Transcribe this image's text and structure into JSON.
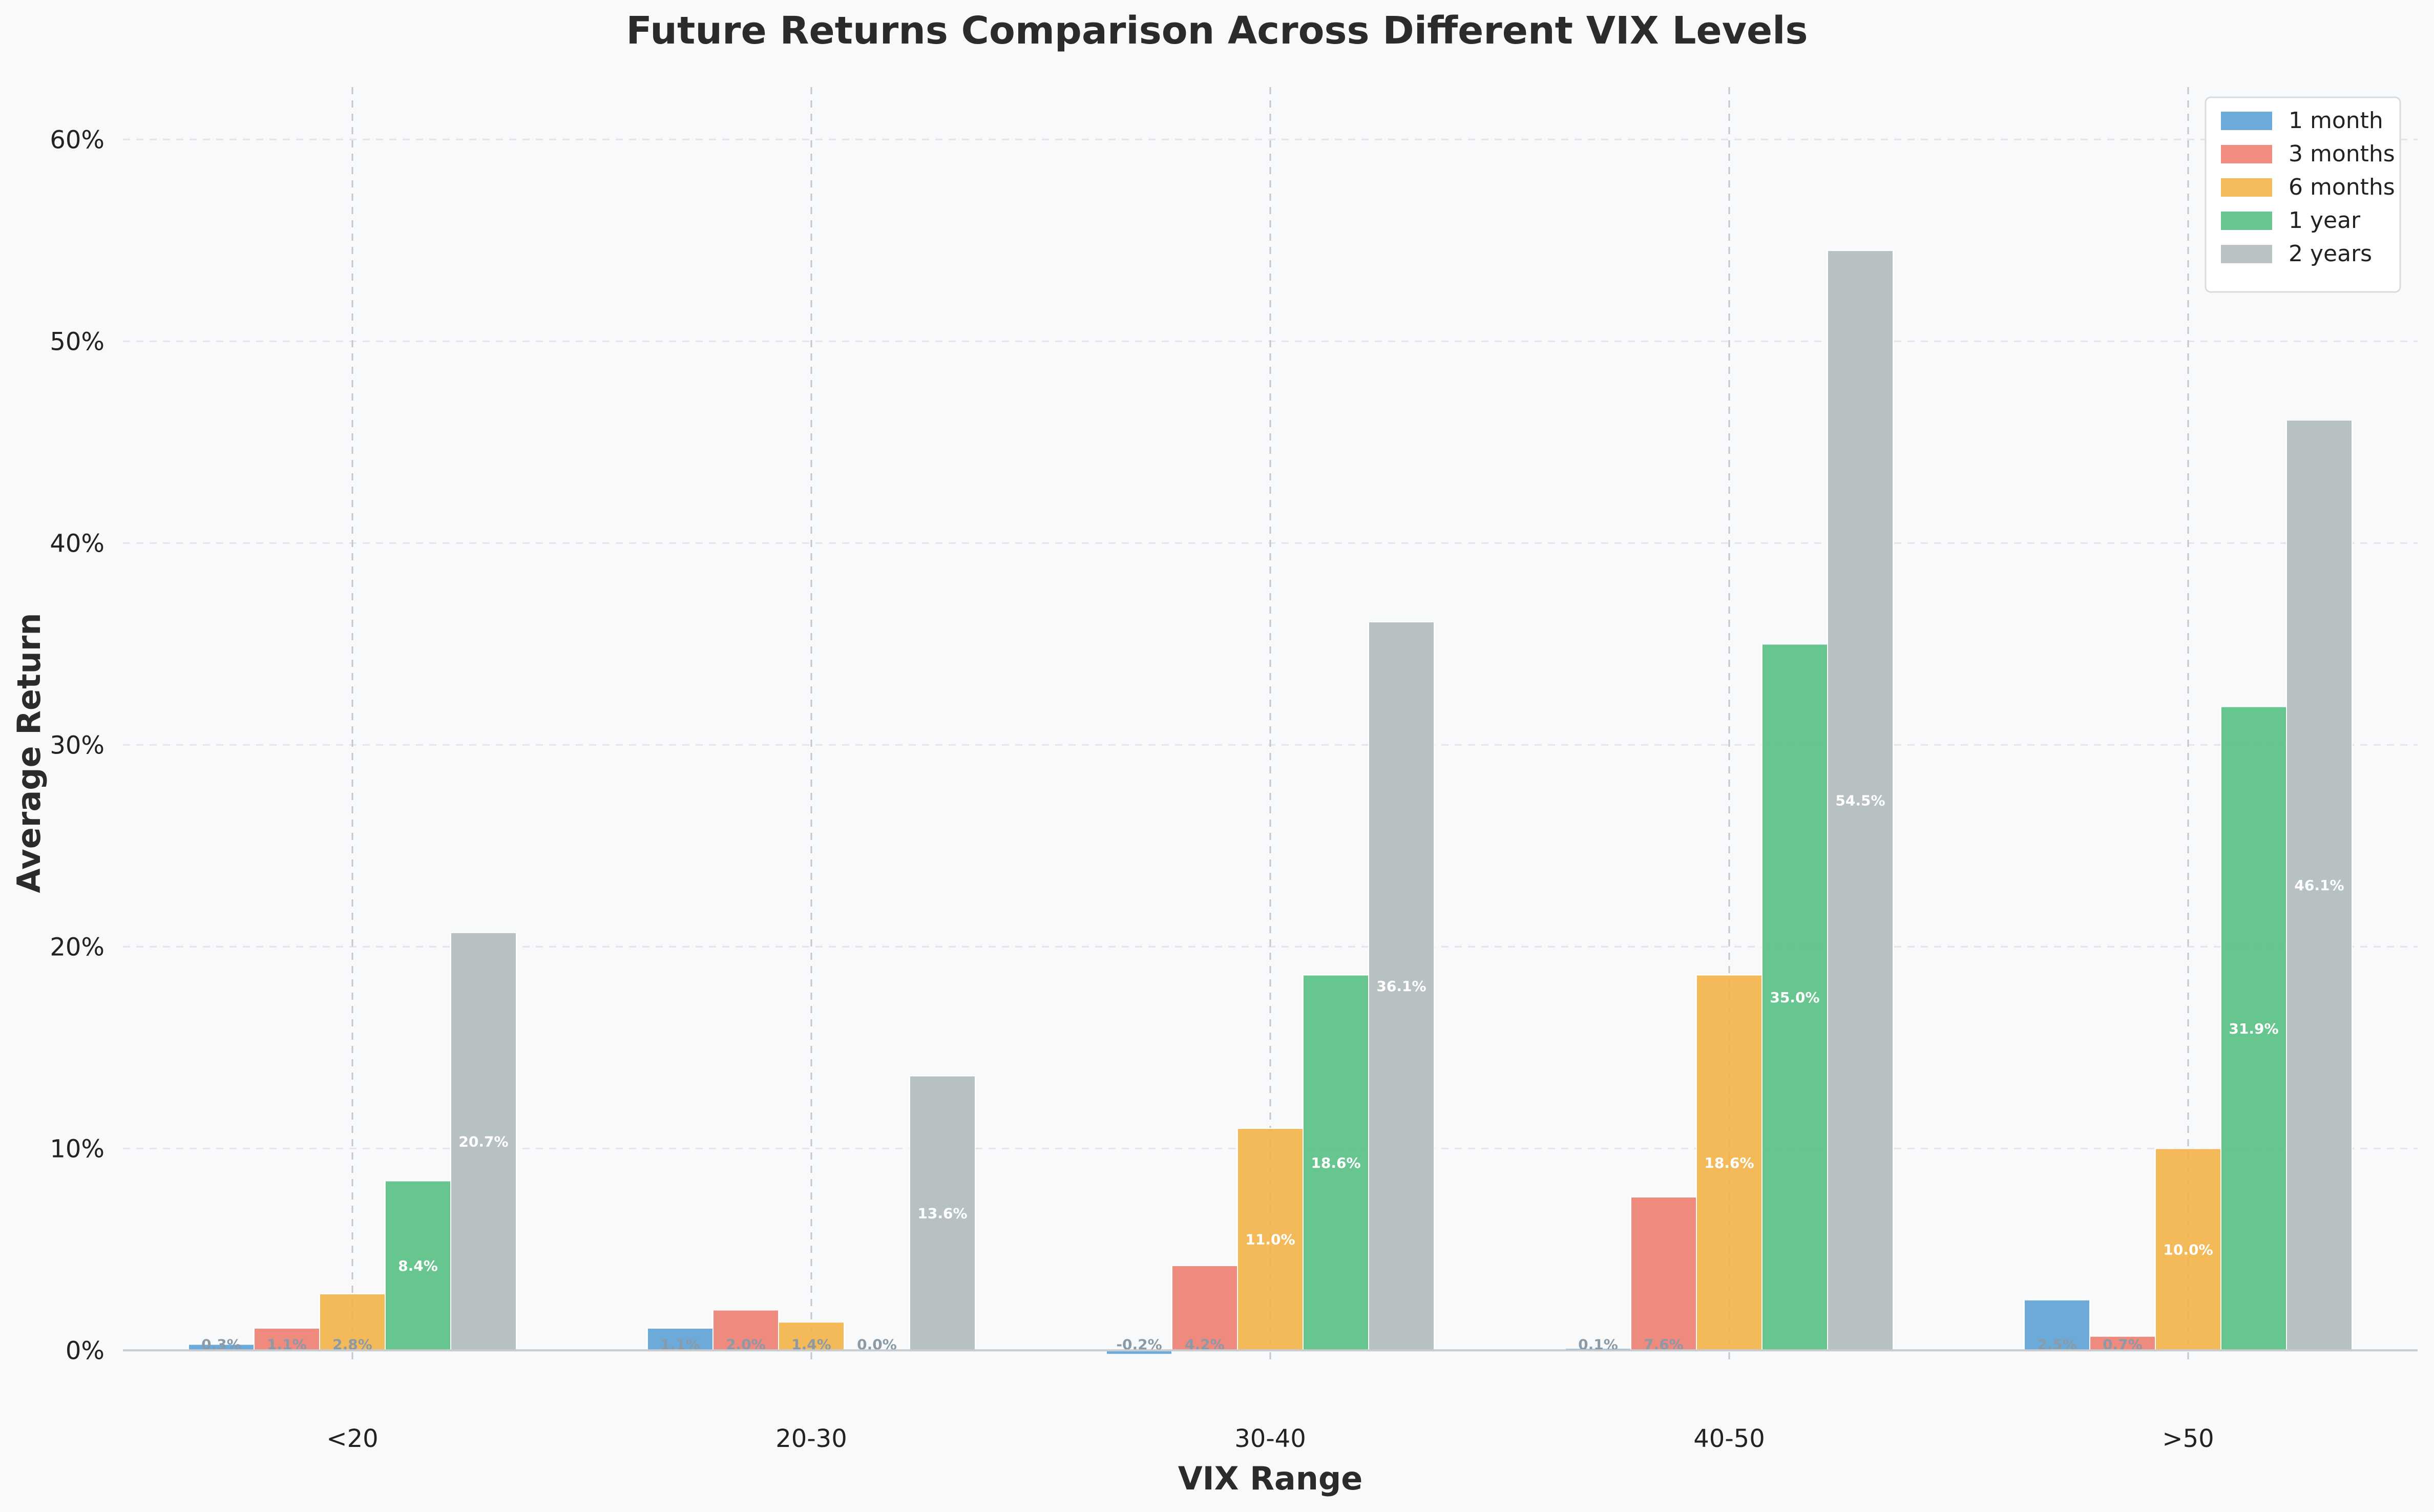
{
  "chart_data": {
    "type": "bar",
    "title": "Future Returns Comparison Across Different VIX Levels",
    "xlabel": "VIX Range",
    "ylabel": "Average Return",
    "categories": [
      "<20",
      "20-30",
      "30-40",
      "40-50",
      ">50"
    ],
    "ylim": [
      -0.6,
      62.6
    ],
    "yticks": [
      0,
      10,
      20,
      30,
      40,
      50,
      60
    ],
    "ytick_labels": [
      "0%",
      "10%",
      "20%",
      "30%",
      "40%",
      "50%",
      "60%"
    ],
    "grid": true,
    "legend_position": "top-right",
    "series": [
      {
        "name": "1 month",
        "color": "#5da3d6",
        "values": [
          0.3,
          1.1,
          -0.2,
          0.1,
          2.5
        ],
        "labels": [
          "0.3%",
          "1.1%",
          "-0.2%",
          "0.1%",
          "2.5%"
        ]
      },
      {
        "name": "3 months",
        "color": "#ef7f72",
        "values": [
          1.1,
          2.0,
          4.2,
          7.6,
          0.7
        ],
        "labels": [
          "1.1%",
          "2.0%",
          "4.2%",
          "7.6%",
          "0.7%"
        ]
      },
      {
        "name": "6 months",
        "color": "#f4b449",
        "values": [
          2.8,
          1.4,
          11.0,
          18.6,
          10.0
        ],
        "labels": [
          "2.8%",
          "1.4%",
          "11.0%",
          "18.6%",
          "10.0%"
        ]
      },
      {
        "name": "1 year",
        "color": "#58c184",
        "values": [
          8.4,
          0.0,
          18.6,
          35.0,
          31.9
        ],
        "labels": [
          "8.4%",
          "0.0%",
          "18.6%",
          "35.0%",
          "31.9%"
        ]
      },
      {
        "name": "2 years",
        "color": "#b2bcbd",
        "values": [
          20.7,
          13.6,
          36.1,
          54.5,
          46.1
        ],
        "labels": [
          "20.7%",
          "13.6%",
          "36.1%",
          "54.5%",
          "46.1%"
        ]
      }
    ]
  }
}
